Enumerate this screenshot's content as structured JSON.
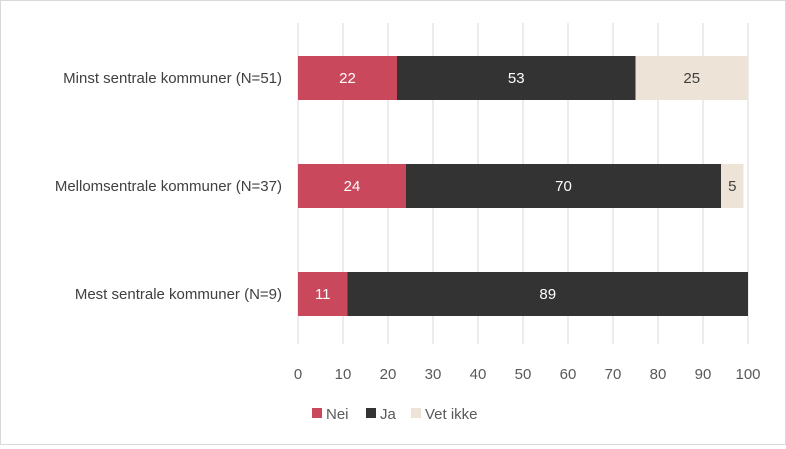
{
  "chart_data": {
    "type": "bar",
    "orientation": "horizontal",
    "stacked": true,
    "categories": [
      "Minst sentrale kommuner (N=51)",
      "Mellomsentrale kommuner (N=37)",
      "Mest sentrale kommuner (N=9)"
    ],
    "series": [
      {
        "name": "Nei",
        "color": "#c9485b",
        "label_color": "#ffffff",
        "values": [
          22,
          24,
          11
        ]
      },
      {
        "name": "Ja",
        "color": "#333333",
        "label_color": "#ffffff",
        "values": [
          53,
          70,
          89
        ]
      },
      {
        "name": "Vet ikke",
        "color": "#ede3d6",
        "label_color": "#404040",
        "values": [
          25,
          5,
          null
        ]
      }
    ],
    "xlim": [
      0,
      100
    ],
    "xticks": [
      "0",
      "10",
      "20",
      "30",
      "40",
      "50",
      "60",
      "70",
      "80",
      "90",
      "100"
    ],
    "grid": true,
    "legend_position": "bottom",
    "title": "",
    "xlabel": "",
    "ylabel": ""
  }
}
